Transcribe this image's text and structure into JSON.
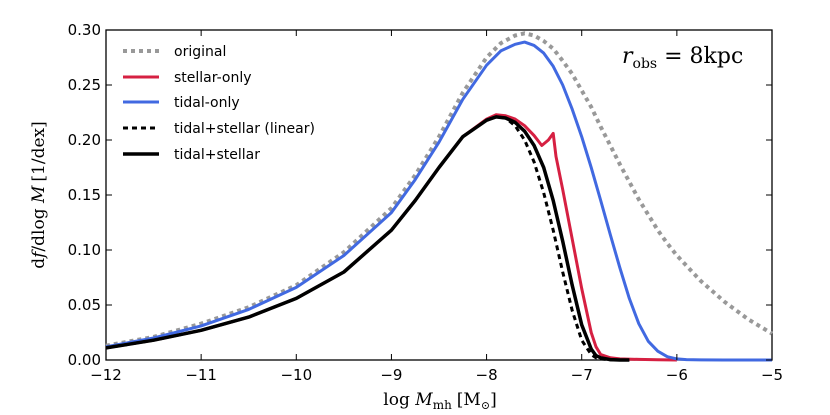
{
  "chart_data": {
    "type": "line",
    "title": "",
    "xlabel": "log M_mh [M_sun]",
    "ylabel": "df/dlog M [1/dex]",
    "xlabel_parts": {
      "log": "log ",
      "M": "M",
      "sub": "mh",
      "unit": "[M",
      "odot": "⊙",
      "close": "]"
    },
    "ylabel_parts": {
      "d": "d",
      "f": "f",
      "slash": "/dlog ",
      "M": "M",
      "unit": "[1/dex]"
    },
    "xlim": [
      -12,
      -5
    ],
    "ylim": [
      0,
      0.3
    ],
    "xticks": [
      -12,
      -11,
      -10,
      -9,
      -8,
      -7,
      -6,
      -5
    ],
    "xtick_labels": [
      "−12",
      "−11",
      "−10",
      "−9",
      "−8",
      "−7",
      "−6",
      "−5"
    ],
    "yticks": [
      0,
      0.05,
      0.1,
      0.15,
      0.2,
      0.25,
      0.3
    ],
    "ytick_labels": [
      "0.00",
      "0.05",
      "0.10",
      "0.15",
      "0.20",
      "0.25",
      "0.30"
    ],
    "annotation": {
      "var": "r",
      "sub": "obs",
      "eq": " = 8kpc"
    },
    "legend_position": "top-left",
    "series": [
      {
        "name": "original",
        "color": "#999999",
        "dash": "dotted",
        "width": 4,
        "x": [
          -12.0,
          -11.5,
          -11.0,
          -10.5,
          -10.0,
          -9.5,
          -9.0,
          -8.75,
          -8.5,
          -8.25,
          -8.0,
          -7.85,
          -7.7,
          -7.6,
          -7.5,
          -7.4,
          -7.3,
          -7.2,
          -7.1,
          -7.0,
          -6.9,
          -6.8,
          -6.7,
          -6.6,
          -6.5,
          -6.4,
          -6.3,
          -6.2,
          -6.1,
          -6.0,
          -5.75,
          -5.5,
          -5.25,
          -5.0
        ],
        "y": [
          0.013,
          0.021,
          0.033,
          0.048,
          0.068,
          0.098,
          0.138,
          0.168,
          0.203,
          0.243,
          0.275,
          0.288,
          0.295,
          0.297,
          0.295,
          0.29,
          0.283,
          0.272,
          0.26,
          0.245,
          0.23,
          0.212,
          0.195,
          0.178,
          0.162,
          0.146,
          0.132,
          0.118,
          0.106,
          0.095,
          0.072,
          0.053,
          0.037,
          0.024
        ]
      },
      {
        "name": "stellar-only",
        "color": "#d62042",
        "dash": "solid",
        "width": 3,
        "x": [
          -12.0,
          -11.5,
          -11.0,
          -10.5,
          -10.0,
          -9.5,
          -9.0,
          -8.75,
          -8.5,
          -8.25,
          -8.0,
          -7.9,
          -7.8,
          -7.7,
          -7.6,
          -7.5,
          -7.42,
          -7.35,
          -7.3,
          -7.27,
          -7.2,
          -7.1,
          -7.0,
          -6.9,
          -6.85,
          -6.8,
          -6.7,
          -6.6,
          -6.4,
          -6.2,
          -6.0
        ],
        "y": [
          0.011,
          0.018,
          0.027,
          0.039,
          0.056,
          0.08,
          0.118,
          0.145,
          0.175,
          0.203,
          0.219,
          0.223,
          0.222,
          0.219,
          0.213,
          0.204,
          0.195,
          0.2,
          0.206,
          0.185,
          0.155,
          0.11,
          0.065,
          0.025,
          0.012,
          0.005,
          0.002,
          0.001,
          0.0005,
          0.0002,
          0.0
        ]
      },
      {
        "name": "tidal-only",
        "color": "#4169e1",
        "dash": "solid",
        "width": 3,
        "x": [
          -12.0,
          -11.5,
          -11.0,
          -10.5,
          -10.0,
          -9.5,
          -9.0,
          -8.75,
          -8.5,
          -8.25,
          -8.0,
          -7.85,
          -7.7,
          -7.6,
          -7.5,
          -7.4,
          -7.3,
          -7.2,
          -7.1,
          -7.0,
          -6.9,
          -6.8,
          -6.7,
          -6.6,
          -6.5,
          -6.4,
          -6.3,
          -6.2,
          -6.1,
          -6.0,
          -5.9,
          -5.75,
          -5.5,
          -5.25,
          -5.0
        ],
        "y": [
          0.012,
          0.02,
          0.031,
          0.046,
          0.066,
          0.095,
          0.134,
          0.164,
          0.198,
          0.237,
          0.268,
          0.281,
          0.287,
          0.289,
          0.286,
          0.279,
          0.267,
          0.25,
          0.228,
          0.203,
          0.175,
          0.145,
          0.114,
          0.084,
          0.056,
          0.033,
          0.017,
          0.008,
          0.003,
          0.001,
          0.0004,
          0.0001,
          0.0,
          0.0,
          0.0
        ]
      },
      {
        "name": "tidal+stellar (linear)",
        "color": "#000000",
        "dash": "dashed",
        "width": 3,
        "x": [
          -12.0,
          -11.5,
          -11.0,
          -10.5,
          -10.0,
          -9.5,
          -9.0,
          -8.75,
          -8.5,
          -8.25,
          -8.0,
          -7.9,
          -7.8,
          -7.7,
          -7.6,
          -7.5,
          -7.4,
          -7.3,
          -7.2,
          -7.1,
          -7.0,
          -6.9,
          -6.85,
          -6.8,
          -6.7,
          -6.6,
          -6.5
        ],
        "y": [
          0.011,
          0.018,
          0.027,
          0.039,
          0.056,
          0.08,
          0.118,
          0.145,
          0.175,
          0.203,
          0.218,
          0.221,
          0.22,
          0.213,
          0.2,
          0.18,
          0.152,
          0.118,
          0.08,
          0.045,
          0.018,
          0.005,
          0.002,
          0.001,
          0.0002,
          0.0,
          0.0
        ]
      },
      {
        "name": "tidal+stellar",
        "color": "#000000",
        "dash": "solid",
        "width": 3.5,
        "x": [
          -12.0,
          -11.5,
          -11.0,
          -10.5,
          -10.0,
          -9.5,
          -9.0,
          -8.75,
          -8.5,
          -8.25,
          -8.0,
          -7.9,
          -7.8,
          -7.7,
          -7.6,
          -7.5,
          -7.4,
          -7.3,
          -7.2,
          -7.1,
          -7.0,
          -6.9,
          -6.85,
          -6.8,
          -6.7,
          -6.6,
          -6.5
        ],
        "y": [
          0.011,
          0.018,
          0.027,
          0.039,
          0.056,
          0.08,
          0.118,
          0.145,
          0.175,
          0.203,
          0.218,
          0.221,
          0.22,
          0.216,
          0.208,
          0.195,
          0.175,
          0.145,
          0.108,
          0.068,
          0.032,
          0.01,
          0.004,
          0.002,
          0.0004,
          0.0,
          0.0
        ]
      }
    ]
  }
}
